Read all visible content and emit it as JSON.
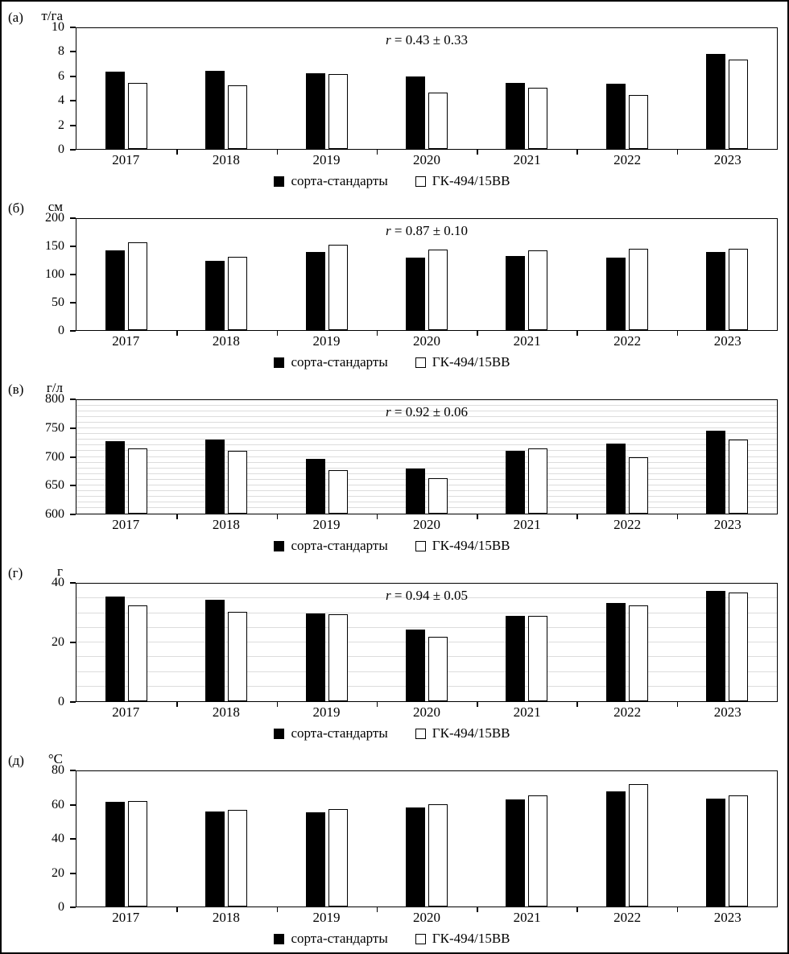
{
  "figure_title": "",
  "chart_data": [
    {
      "id": "a",
      "panel_label": "(а)",
      "type": "bar",
      "unit": "т/га",
      "r_var": "r",
      "r_rest": " = 0.43 ± 0.33",
      "categories": [
        "2017",
        "2018",
        "2019",
        "2020",
        "2021",
        "2022",
        "2023"
      ],
      "series": [
        {
          "name": "сорта-стандарты",
          "values": [
            6.4,
            6.5,
            6.3,
            6.0,
            5.5,
            5.4,
            7.9
          ]
        },
        {
          "name": "ГК-494/15ВВ",
          "values": [
            5.5,
            5.3,
            6.2,
            4.7,
            5.1,
            4.5,
            7.4
          ]
        }
      ],
      "ylim": [
        0,
        10
      ],
      "yticks": [
        0,
        2,
        4,
        6,
        8,
        10
      ],
      "grid_step": null,
      "legend_position": "bottom"
    },
    {
      "id": "b",
      "panel_label": "(б)",
      "type": "bar",
      "unit": "см",
      "r_var": "r",
      "r_rest": " = 0.87 ± 0.10",
      "categories": [
        "2017",
        "2018",
        "2019",
        "2020",
        "2021",
        "2022",
        "2023"
      ],
      "series": [
        {
          "name": "сорта-стандарты",
          "values": [
            143,
            124,
            140,
            130,
            134,
            130,
            140
          ]
        },
        {
          "name": "ГК-494/15ВВ",
          "values": [
            158,
            132,
            153,
            145,
            143,
            146,
            146
          ]
        }
      ],
      "ylim": [
        0,
        200
      ],
      "yticks": [
        0,
        50,
        100,
        150,
        200
      ],
      "grid_step": null,
      "legend_position": "bottom"
    },
    {
      "id": "v",
      "panel_label": "(в)",
      "type": "bar",
      "unit": "г/л",
      "r_var": "r",
      "r_rest": " = 0.92 ± 0.06",
      "categories": [
        "2017",
        "2018",
        "2019",
        "2020",
        "2021",
        "2022",
        "2023"
      ],
      "series": [
        {
          "name": "сорта-стандарты",
          "values": [
            728,
            731,
            697,
            680,
            710,
            724,
            746
          ]
        },
        {
          "name": "ГК-494/15ВВ",
          "values": [
            715,
            711,
            676,
            662,
            715,
            700,
            731
          ]
        }
      ],
      "ylim": [
        600,
        800
      ],
      "yticks": [
        600,
        650,
        700,
        750,
        800
      ],
      "grid_step": 10,
      "legend_position": "bottom"
    },
    {
      "id": "g",
      "panel_label": "(г)",
      "type": "bar",
      "unit": "г",
      "r_var": "r",
      "r_rest": " = 0.94 ± 0.05",
      "categories": [
        "2017",
        "2018",
        "2019",
        "2020",
        "2021",
        "2022",
        "2023"
      ],
      "series": [
        {
          "name": "сорта-стандарты",
          "values": [
            35.5,
            34.5,
            30,
            24.5,
            29,
            33.5,
            37.5
          ]
        },
        {
          "name": "ГК-494/15ВВ",
          "values": [
            32.5,
            30.5,
            29.5,
            22,
            29,
            32.5,
            37
          ]
        }
      ],
      "ylim": [
        0,
        40
      ],
      "yticks": [
        0,
        20,
        40
      ],
      "grid_step": 5,
      "legend_position": "bottom"
    },
    {
      "id": "d",
      "panel_label": "(д)",
      "type": "bar",
      "unit": "°C",
      "r_var": null,
      "r_rest": null,
      "categories": [
        "2017",
        "2018",
        "2019",
        "2020",
        "2021",
        "2022",
        "2023"
      ],
      "series": [
        {
          "name": "сорта-стандарты",
          "values": [
            62,
            56,
            55.5,
            58.5,
            63.5,
            68,
            64
          ]
        },
        {
          "name": "ГК-494/15ВВ",
          "values": [
            62.5,
            57,
            57.5,
            60.5,
            65.5,
            72.5,
            65.5
          ]
        }
      ],
      "ylim": [
        0,
        80
      ],
      "yticks": [
        0,
        20,
        40,
        60,
        80
      ],
      "grid_step": null,
      "legend_position": "bottom"
    }
  ],
  "colors": {
    "bar_filled": "#000000",
    "bar_open": "#ffffff",
    "axis": "#000000",
    "grid": "#dcdcdc"
  }
}
